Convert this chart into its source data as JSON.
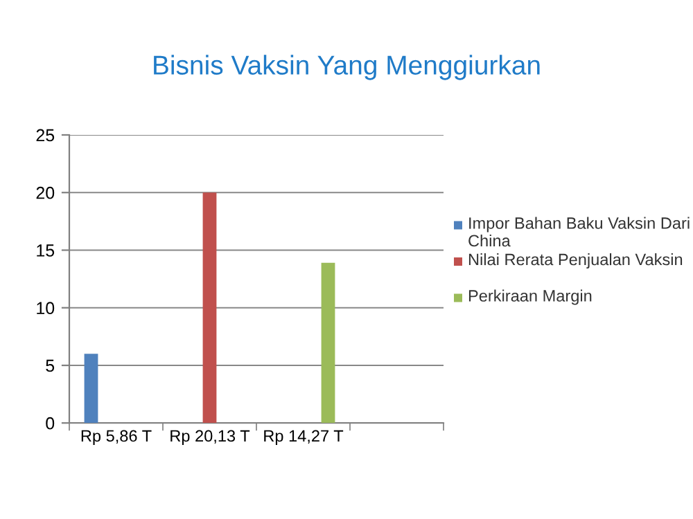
{
  "chart_data": {
    "type": "bar",
    "title": "Bisnis Vaksin Yang Menggiurkan",
    "categories": [
      "Rp 5,86 T",
      "Rp 20,13 T",
      "Rp 14,27 T",
      null
    ],
    "series": [
      {
        "name": "Impor Bahan Baku Vaksin Dari China",
        "color": "#4f81bd",
        "values": [
          6,
          null,
          null,
          null
        ]
      },
      {
        "name": "Nilai Rerata Penjualan Vaksin",
        "color": "#c0504d",
        "values": [
          null,
          20,
          null,
          null
        ]
      },
      {
        "name": "Perkiraan Margin",
        "color": "#9bbb59",
        "values": [
          null,
          null,
          13.9,
          null
        ]
      }
    ],
    "ylim": [
      0,
      25
    ],
    "yticks": [
      0,
      5,
      10,
      15,
      20,
      25
    ],
    "grid": "y",
    "legend": "right"
  }
}
